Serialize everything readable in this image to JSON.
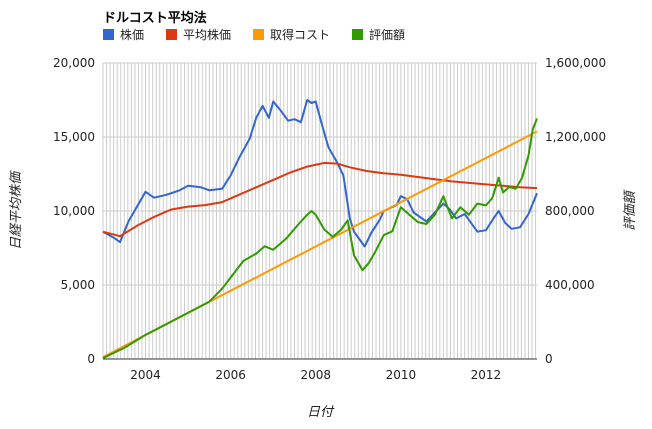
{
  "chart_data": {
    "type": "line",
    "title": "ドルコスト平均法",
    "xlabel": "日付",
    "ylabel_left": "日経平均株価",
    "ylabel_right": "評価額",
    "xlim": [
      2003.0,
      2013.2
    ],
    "ylim_left": [
      0,
      20000
    ],
    "ylim_right": [
      0,
      1600000
    ],
    "x_ticks": [
      2004,
      2006,
      2008,
      2010,
      2012
    ],
    "x_tick_labels": [
      "2004",
      "2006",
      "2008",
      "2010",
      "2012"
    ],
    "y_left_ticks": [
      0,
      5000,
      10000,
      15000,
      20000
    ],
    "y_left_tick_labels": [
      "0",
      "5,000",
      "10,000",
      "15,000",
      "20,000"
    ],
    "y_right_ticks": [
      0,
      400000,
      800000,
      1200000,
      1600000
    ],
    "y_right_tick_labels": [
      "0",
      "400,000",
      "800,000",
      "1,200,000",
      "1,600,000"
    ],
    "grid": true,
    "legend_position": "top-left",
    "series": [
      {
        "name": "株価",
        "color": "#3366cc",
        "axis": "left",
        "points": [
          [
            2003.0,
            8600
          ],
          [
            2003.25,
            8200
          ],
          [
            2003.4,
            7900
          ],
          [
            2003.6,
            9300
          ],
          [
            2003.8,
            10300
          ],
          [
            2004.0,
            11300
          ],
          [
            2004.2,
            10900
          ],
          [
            2004.5,
            11100
          ],
          [
            2004.8,
            11400
          ],
          [
            2005.0,
            11700
          ],
          [
            2005.3,
            11600
          ],
          [
            2005.5,
            11400
          ],
          [
            2005.8,
            11500
          ],
          [
            2006.0,
            12400
          ],
          [
            2006.2,
            13600
          ],
          [
            2006.45,
            14900
          ],
          [
            2006.6,
            16300
          ],
          [
            2006.75,
            17100
          ],
          [
            2006.9,
            16300
          ],
          [
            2007.0,
            17400
          ],
          [
            2007.2,
            16700
          ],
          [
            2007.35,
            16100
          ],
          [
            2007.5,
            16200
          ],
          [
            2007.65,
            16000
          ],
          [
            2007.8,
            17500
          ],
          [
            2007.9,
            17300
          ],
          [
            2008.0,
            17400
          ],
          [
            2008.15,
            15800
          ],
          [
            2008.3,
            14300
          ],
          [
            2008.5,
            13300
          ],
          [
            2008.65,
            12400
          ],
          [
            2008.8,
            9500
          ],
          [
            2008.9,
            8600
          ],
          [
            2009.0,
            8200
          ],
          [
            2009.15,
            7600
          ],
          [
            2009.3,
            8500
          ],
          [
            2009.5,
            9400
          ],
          [
            2009.6,
            10000
          ],
          [
            2009.75,
            10200
          ],
          [
            2009.9,
            10400
          ],
          [
            2010.0,
            11000
          ],
          [
            2010.15,
            10800
          ],
          [
            2010.3,
            9900
          ],
          [
            2010.5,
            9500
          ],
          [
            2010.6,
            9300
          ],
          [
            2010.8,
            9900
          ],
          [
            2011.0,
            10500
          ],
          [
            2011.15,
            10100
          ],
          [
            2011.3,
            9500
          ],
          [
            2011.5,
            9800
          ],
          [
            2011.65,
            9200
          ],
          [
            2011.8,
            8600
          ],
          [
            2012.0,
            8700
          ],
          [
            2012.2,
            9600
          ],
          [
            2012.3,
            10000
          ],
          [
            2012.45,
            9200
          ],
          [
            2012.6,
            8800
          ],
          [
            2012.8,
            8900
          ],
          [
            2013.0,
            9800
          ],
          [
            2013.2,
            11200
          ]
        ]
      },
      {
        "name": "平均株価",
        "color": "#dc3912",
        "axis": "left",
        "points": [
          [
            2003.0,
            8600
          ],
          [
            2003.4,
            8300
          ],
          [
            2003.8,
            9000
          ],
          [
            2004.2,
            9600
          ],
          [
            2004.6,
            10100
          ],
          [
            2005.0,
            10300
          ],
          [
            2005.4,
            10400
          ],
          [
            2005.8,
            10600
          ],
          [
            2006.2,
            11100
          ],
          [
            2006.6,
            11600
          ],
          [
            2007.0,
            12100
          ],
          [
            2007.4,
            12600
          ],
          [
            2007.8,
            13000
          ],
          [
            2008.2,
            13250
          ],
          [
            2008.5,
            13200
          ],
          [
            2008.8,
            12950
          ],
          [
            2009.2,
            12700
          ],
          [
            2009.6,
            12550
          ],
          [
            2010.0,
            12450
          ],
          [
            2010.4,
            12300
          ],
          [
            2010.8,
            12150
          ],
          [
            2011.2,
            12000
          ],
          [
            2011.6,
            11900
          ],
          [
            2012.0,
            11800
          ],
          [
            2012.4,
            11700
          ],
          [
            2012.8,
            11600
          ],
          [
            2013.2,
            11550
          ]
        ]
      },
      {
        "name": "取得コスト",
        "color": "#ff9900",
        "axis": "right",
        "points": [
          [
            2003.0,
            10000
          ],
          [
            2013.2,
            1230000
          ]
        ]
      },
      {
        "name": "評価額",
        "color": "#339900",
        "axis": "right",
        "points": [
          [
            2003.0,
            5000
          ],
          [
            2003.5,
            60000
          ],
          [
            2004.0,
            130000
          ],
          [
            2004.5,
            190000
          ],
          [
            2005.0,
            250000
          ],
          [
            2005.5,
            310000
          ],
          [
            2005.8,
            380000
          ],
          [
            2006.0,
            440000
          ],
          [
            2006.3,
            530000
          ],
          [
            2006.6,
            570000
          ],
          [
            2006.8,
            610000
          ],
          [
            2007.0,
            590000
          ],
          [
            2007.3,
            650000
          ],
          [
            2007.6,
            730000
          ],
          [
            2007.8,
            780000
          ],
          [
            2007.9,
            800000
          ],
          [
            2008.0,
            780000
          ],
          [
            2008.2,
            700000
          ],
          [
            2008.4,
            660000
          ],
          [
            2008.6,
            700000
          ],
          [
            2008.75,
            750000
          ],
          [
            2008.9,
            560000
          ],
          [
            2009.0,
            520000
          ],
          [
            2009.1,
            480000
          ],
          [
            2009.25,
            520000
          ],
          [
            2009.4,
            580000
          ],
          [
            2009.6,
            670000
          ],
          [
            2009.8,
            690000
          ],
          [
            2010.0,
            820000
          ],
          [
            2010.2,
            780000
          ],
          [
            2010.4,
            740000
          ],
          [
            2010.6,
            730000
          ],
          [
            2010.8,
            780000
          ],
          [
            2011.0,
            880000
          ],
          [
            2011.2,
            760000
          ],
          [
            2011.4,
            820000
          ],
          [
            2011.6,
            780000
          ],
          [
            2011.8,
            840000
          ],
          [
            2012.0,
            830000
          ],
          [
            2012.15,
            870000
          ],
          [
            2012.3,
            980000
          ],
          [
            2012.4,
            900000
          ],
          [
            2012.55,
            930000
          ],
          [
            2012.7,
            920000
          ],
          [
            2012.85,
            980000
          ],
          [
            2013.0,
            1100000
          ],
          [
            2013.1,
            1240000
          ],
          [
            2013.2,
            1300000
          ]
        ]
      }
    ]
  }
}
